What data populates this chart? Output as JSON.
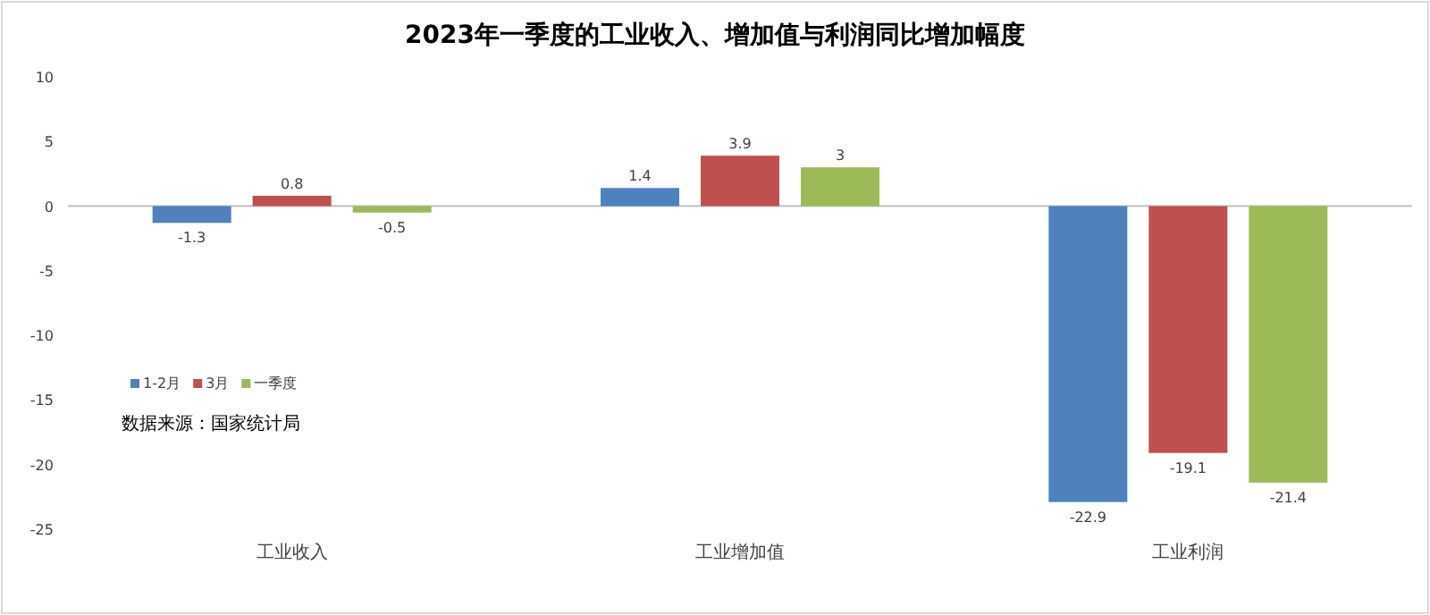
{
  "chart_data": {
    "type": "bar",
    "title": "2023年一季度的工业收入、增加值与利润同比增加幅度",
    "categories": [
      "工业收入",
      "工业增加值",
      "工业利润"
    ],
    "series": [
      {
        "name": "1-2月",
        "color": "#4f81bd",
        "values": [
          -1.3,
          1.4,
          -22.9
        ]
      },
      {
        "name": "3月",
        "color": "#c0504d",
        "values": [
          0.8,
          3.9,
          -19.1
        ]
      },
      {
        "name": "一季度",
        "color": "#9bbb59",
        "values": [
          -0.5,
          3,
          -21.4
        ]
      }
    ],
    "ylim": [
      -25,
      10
    ],
    "yticks": [
      -25,
      -20,
      -15,
      -10,
      -5,
      0,
      5,
      10
    ],
    "data_labels": true,
    "legend": "bottom left",
    "annotations": [
      "数据来源：国家统计局"
    ]
  }
}
